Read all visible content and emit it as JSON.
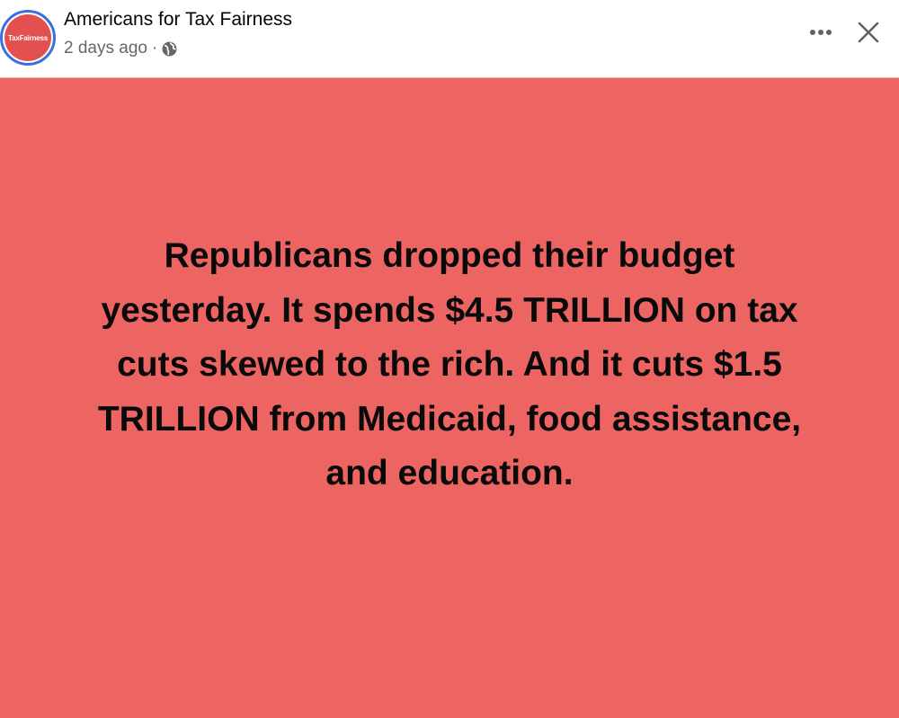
{
  "post": {
    "author": "Americans for Tax Fairness",
    "avatar_text": "TaxFairness",
    "timestamp": "2 days ago",
    "separator": "·",
    "audience_icon": "globe-icon",
    "more_icon": "more-options-icon",
    "close_icon": "close-icon",
    "card_color": "#ec6562",
    "card_lines": [
      "Republicans dropped their budget",
      "yesterday. It spends $4.5 TRILLION on tax",
      "cuts skewed to the rich. And it cuts $1.5",
      "TRILLION from Medicaid, food assistance,",
      "and education."
    ]
  }
}
